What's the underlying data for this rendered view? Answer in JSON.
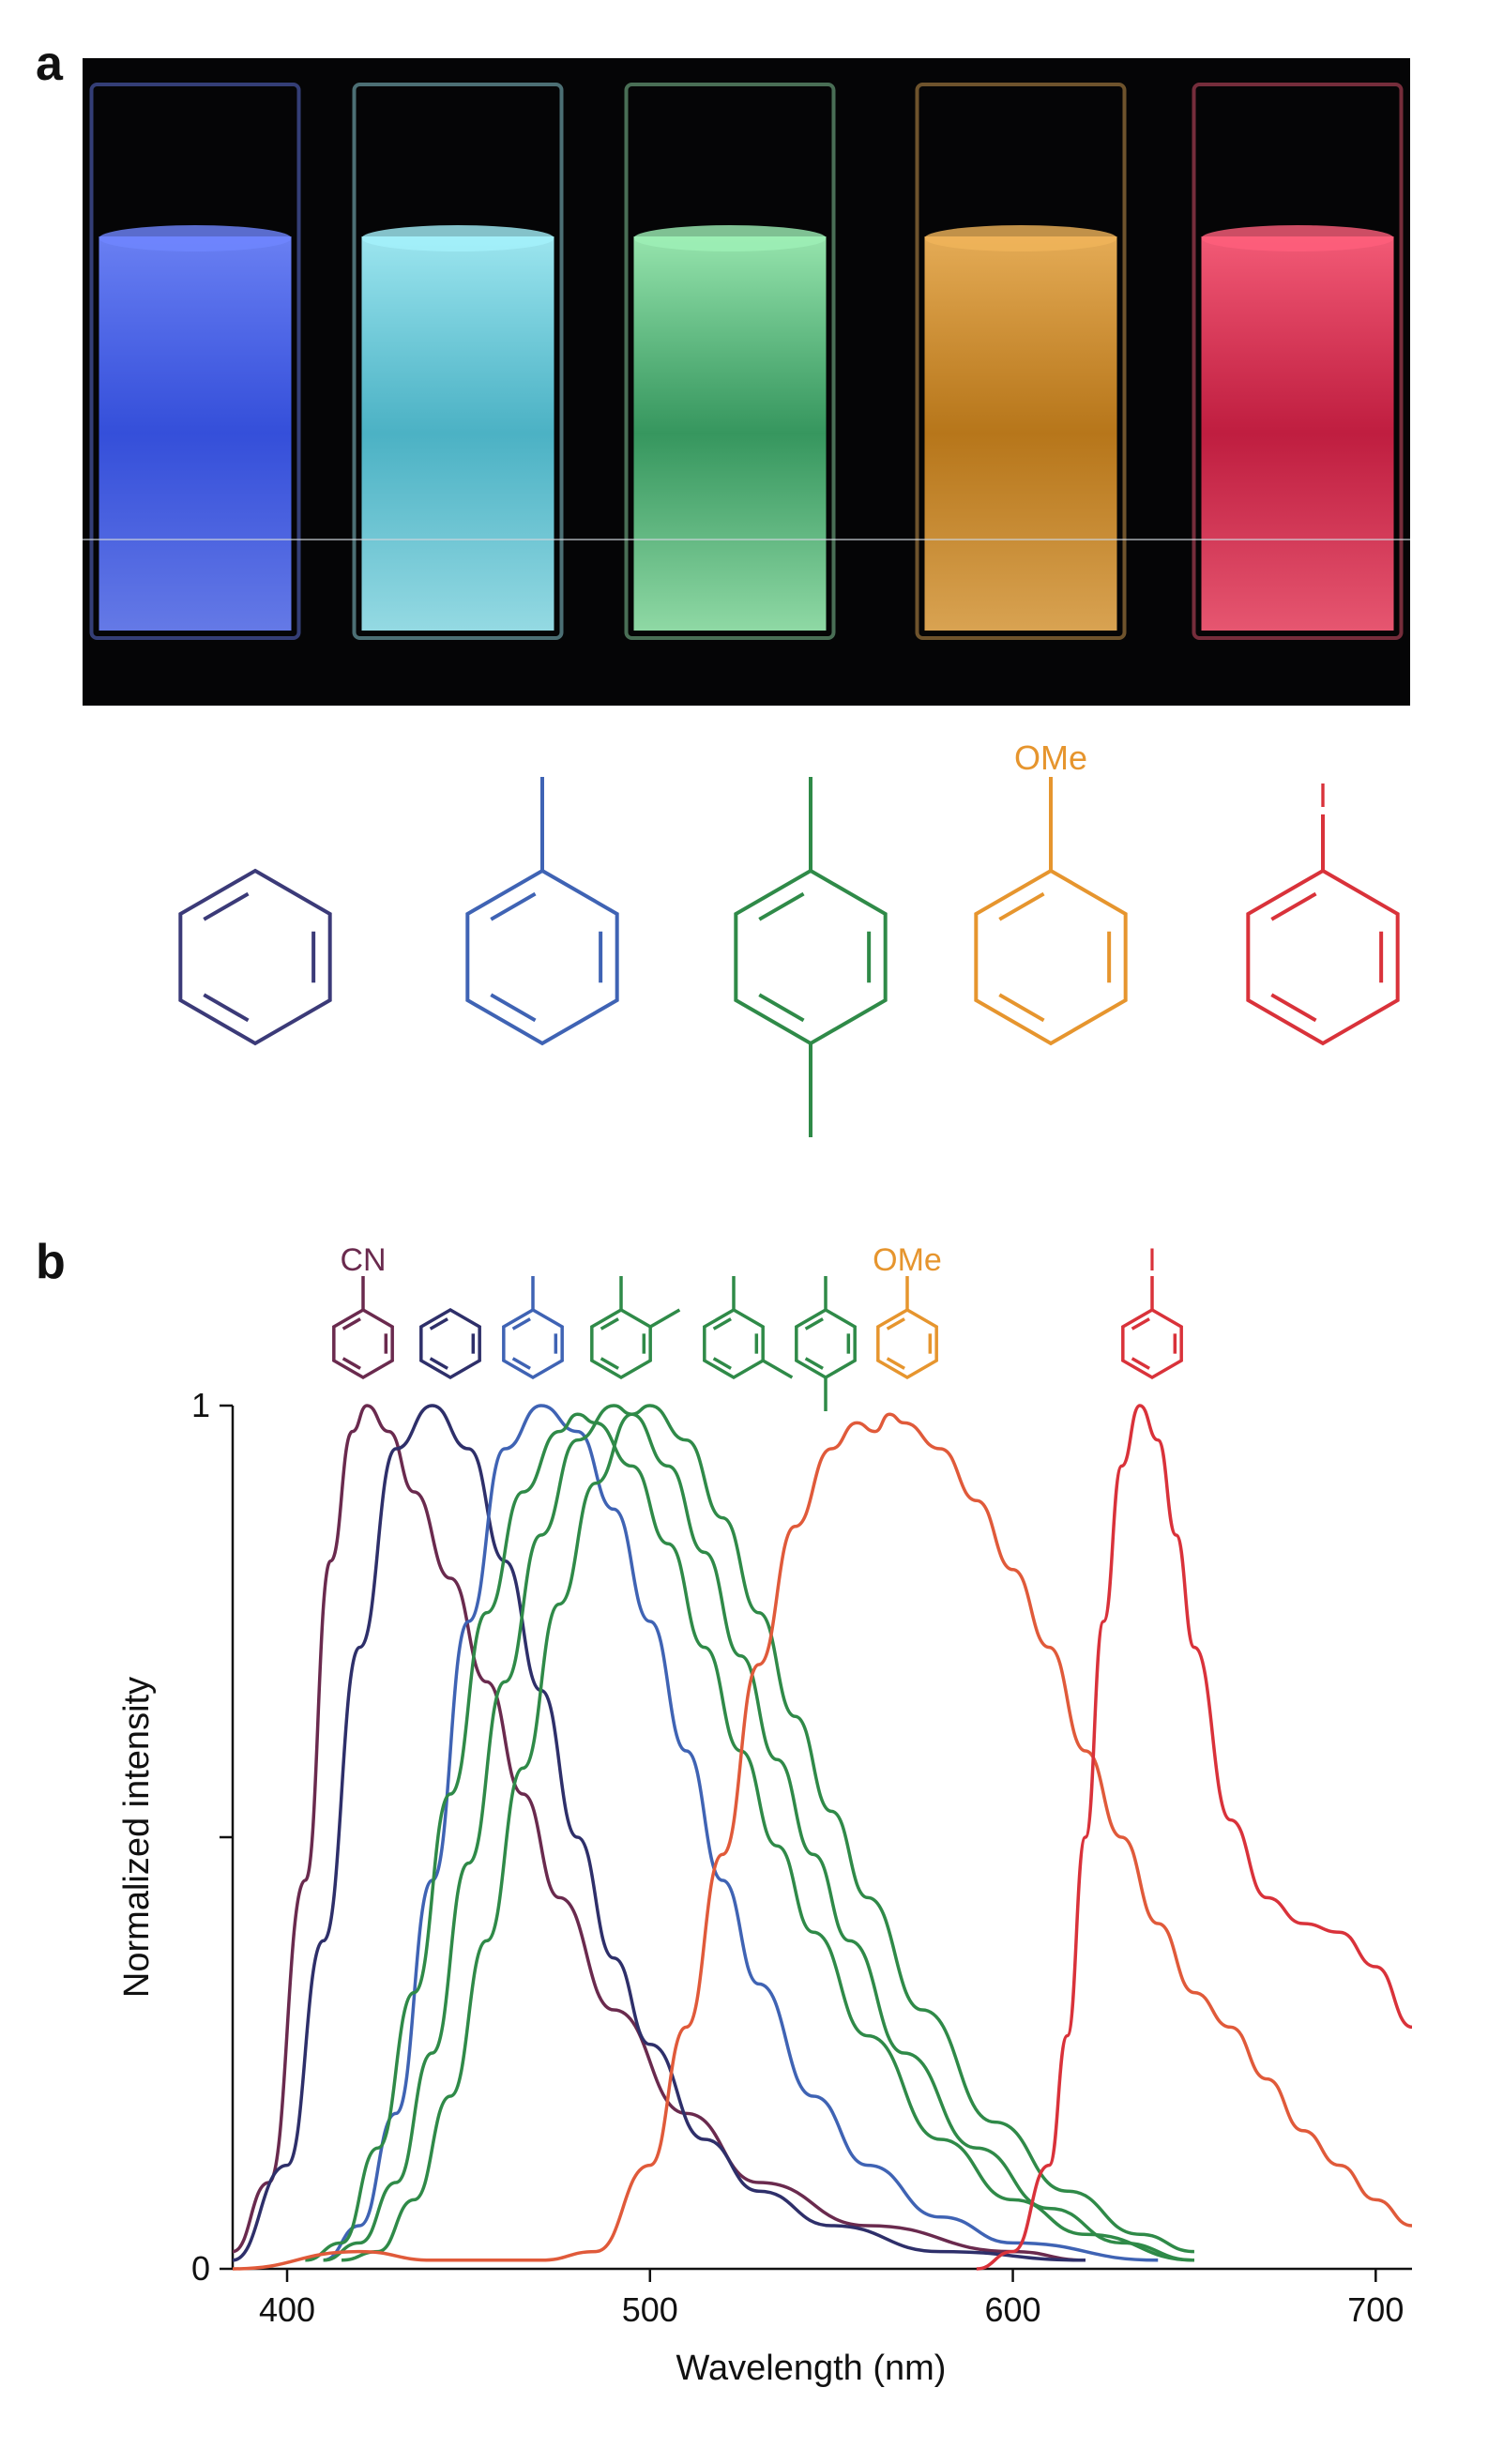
{
  "panel_a": {
    "label": "a",
    "cuvettes": [
      {
        "color": "#3d5cff",
        "glow": "#6f86ff"
      },
      {
        "color": "#58d0e6",
        "glow": "#a4f1fb"
      },
      {
        "color": "#3fb06e",
        "glow": "#9ef0b6"
      },
      {
        "color": "#d68a1e",
        "glow": "#f0b45a"
      },
      {
        "color": "#e0224a",
        "glow": "#ff5f7c"
      }
    ],
    "structures": [
      {
        "substituents": [],
        "color": "#3b3a78"
      },
      {
        "substituents": [
          "Me"
        ],
        "color": "#3f63b4"
      },
      {
        "substituents": [
          "Me",
          "Me-para"
        ],
        "color": "#2f8a48"
      },
      {
        "substituents": [
          "OMe"
        ],
        "color": "#e6952e",
        "label": "OMe"
      },
      {
        "substituents": [
          "I"
        ],
        "color": "#d9323a",
        "label": "I"
      }
    ]
  },
  "panel_b": {
    "label": "b",
    "legend": [
      {
        "color": "#6a2a4e",
        "label": "CN",
        "subs": [
          "top"
        ]
      },
      {
        "color": "#2e2f6a",
        "label": "",
        "subs": []
      },
      {
        "color": "#3f63b4",
        "label": "",
        "subs": [
          "top"
        ]
      },
      {
        "color": "#2f8a48",
        "label": "",
        "subs": [
          "top",
          "top-right"
        ]
      },
      {
        "color": "#2f8a48",
        "label": "",
        "subs": [
          "top",
          "bottom-right"
        ]
      },
      {
        "color": "#2f8a48",
        "label": "",
        "subs": [
          "top",
          "bottom"
        ]
      },
      {
        "color": "#e6952e",
        "label": "OMe",
        "subs": [
          "top"
        ]
      },
      {
        "color": "#d9323a",
        "label": "I",
        "subs": [
          "top"
        ]
      }
    ]
  },
  "chart_data": {
    "type": "line",
    "xlabel": "Wavelength (nm)",
    "ylabel": "Normalized intensity",
    "xlim": [
      385,
      710
    ],
    "ylim": [
      0,
      1
    ],
    "xticks": [
      400,
      500,
      600,
      700
    ],
    "yticks": [
      0,
      0.5,
      1
    ],
    "ytick_labels": [
      "0",
      "",
      "1"
    ],
    "grid": false,
    "series": [
      {
        "color": "#6a2a4e",
        "x": [
          385,
          395,
          405,
          412,
          418,
          422,
          428,
          435,
          445,
          455,
          465,
          475,
          490,
          510,
          530,
          560,
          600,
          620
        ],
        "y": [
          0.02,
          0.1,
          0.45,
          0.82,
          0.97,
          1.0,
          0.97,
          0.9,
          0.8,
          0.68,
          0.55,
          0.43,
          0.3,
          0.18,
          0.1,
          0.05,
          0.02,
          0.01
        ]
      },
      {
        "color": "#2e2f6a",
        "x": [
          385,
          400,
          410,
          420,
          430,
          440,
          450,
          460,
          470,
          480,
          490,
          500,
          515,
          530,
          550,
          580,
          620
        ],
        "y": [
          0.01,
          0.12,
          0.38,
          0.72,
          0.95,
          1.0,
          0.95,
          0.82,
          0.67,
          0.5,
          0.36,
          0.26,
          0.15,
          0.09,
          0.05,
          0.02,
          0.01
        ]
      },
      {
        "color": "#3f63b4",
        "x": [
          410,
          420,
          430,
          440,
          450,
          460,
          470,
          480,
          490,
          500,
          510,
          520,
          530,
          545,
          560,
          580,
          600,
          640
        ],
        "y": [
          0.01,
          0.05,
          0.18,
          0.45,
          0.75,
          0.95,
          1.0,
          0.97,
          0.88,
          0.75,
          0.6,
          0.45,
          0.33,
          0.2,
          0.12,
          0.06,
          0.03,
          0.01
        ]
      },
      {
        "color": "#2f8a48",
        "x": [
          405,
          415,
          425,
          435,
          445,
          455,
          465,
          475,
          480,
          485,
          495,
          505,
          515,
          525,
          535,
          545,
          560,
          580,
          600,
          620,
          650
        ],
        "y": [
          0.01,
          0.03,
          0.14,
          0.32,
          0.55,
          0.76,
          0.9,
          0.97,
          0.99,
          0.98,
          0.93,
          0.84,
          0.72,
          0.6,
          0.49,
          0.39,
          0.27,
          0.15,
          0.08,
          0.04,
          0.01
        ]
      },
      {
        "color": "#2f8a48",
        "x": [
          410,
          420,
          430,
          440,
          450,
          460,
          470,
          480,
          490,
          495,
          505,
          515,
          525,
          535,
          545,
          555,
          570,
          590,
          610,
          630,
          650
        ],
        "y": [
          0.01,
          0.03,
          0.1,
          0.25,
          0.47,
          0.68,
          0.85,
          0.96,
          1.0,
          0.99,
          0.93,
          0.83,
          0.71,
          0.59,
          0.48,
          0.38,
          0.25,
          0.14,
          0.07,
          0.03,
          0.01
        ]
      },
      {
        "color": "#2f8a48",
        "x": [
          415,
          425,
          435,
          445,
          455,
          465,
          475,
          485,
          495,
          500,
          510,
          520,
          530,
          540,
          550,
          560,
          575,
          595,
          615,
          635,
          650
        ],
        "y": [
          0.01,
          0.02,
          0.08,
          0.2,
          0.38,
          0.58,
          0.77,
          0.91,
          0.99,
          1.0,
          0.96,
          0.87,
          0.76,
          0.64,
          0.53,
          0.43,
          0.3,
          0.17,
          0.09,
          0.04,
          0.02
        ]
      },
      {
        "color": "#e05a3a",
        "x": [
          385,
          420,
          440,
          460,
          470,
          485,
          500,
          510,
          520,
          530,
          540,
          550,
          557,
          562,
          566,
          570,
          580,
          590,
          600,
          610,
          620,
          630,
          640,
          650,
          660,
          670,
          680,
          690,
          700,
          710
        ],
        "y": [
          0.0,
          0.02,
          0.01,
          0.01,
          0.01,
          0.02,
          0.12,
          0.28,
          0.48,
          0.7,
          0.86,
          0.95,
          0.98,
          0.97,
          0.99,
          0.98,
          0.95,
          0.89,
          0.81,
          0.72,
          0.6,
          0.5,
          0.4,
          0.32,
          0.28,
          0.22,
          0.16,
          0.12,
          0.08,
          0.05
        ]
      },
      {
        "color": "#d9323a",
        "x": [
          590,
          600,
          610,
          615,
          620,
          625,
          630,
          635,
          640,
          645,
          650,
          660,
          670,
          680,
          690,
          700,
          710
        ],
        "y": [
          0.0,
          0.02,
          0.12,
          0.27,
          0.5,
          0.75,
          0.93,
          1.0,
          0.96,
          0.85,
          0.72,
          0.52,
          0.43,
          0.4,
          0.39,
          0.35,
          0.28
        ]
      }
    ]
  }
}
